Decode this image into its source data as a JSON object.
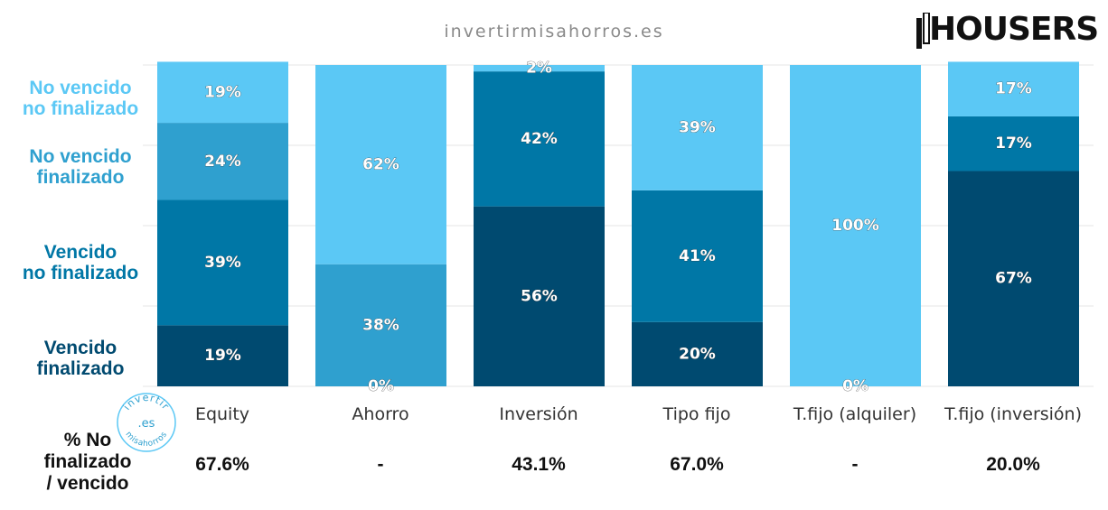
{
  "watermark": "invertirmisahorros.es",
  "brand": "HOUSERS",
  "logo": {
    "top_text": "invertir",
    "middle_text": ".es",
    "bottom_text": "misahorros"
  },
  "legend": [
    {
      "line1": "No vencido",
      "line2": "no finalizado",
      "color": "#5bc8f5"
    },
    {
      "line1": "No vencido",
      "line2": "finalizado",
      "color": "#2fa0cf"
    },
    {
      "line1": "Vencido",
      "line2": "no finalizado",
      "color": "#0077a6"
    },
    {
      "line1": "Vencido",
      "line2": "finalizado",
      "color": "#004a70"
    }
  ],
  "row_title": {
    "line1": "% No",
    "line2": "finalizado",
    "line3": "/ vencido"
  },
  "chart_data": {
    "type": "bar",
    "stacked": true,
    "ylim": [
      0,
      100
    ],
    "grid": true,
    "categories": [
      "Equity",
      "Ahorro",
      "Inversión",
      "Tipo fijo",
      "T.fijo (alquiler)",
      "T.fijo (inversión)"
    ],
    "series": [
      {
        "name": "Vencido finalizado",
        "color": "#004a70",
        "values": [
          19,
          0,
          56,
          20,
          0,
          67
        ],
        "labels": [
          "19%",
          "0%",
          "56%",
          "20%",
          "0%",
          "67%"
        ]
      },
      {
        "name": "Vencido no finalizado",
        "color": "#0077a6",
        "values": [
          39,
          0,
          42,
          41,
          0,
          17
        ],
        "labels": [
          "39%",
          "",
          "42%",
          "41%",
          "",
          "17%"
        ]
      },
      {
        "name": "No vencido finalizado",
        "color": "#2fa0cf",
        "values": [
          24,
          38,
          0,
          0,
          0,
          0
        ],
        "labels": [
          "24%",
          "38%",
          "",
          "",
          "",
          ""
        ]
      },
      {
        "name": "No vencido no finalizado",
        "color": "#5bc8f5",
        "values": [
          19,
          62,
          2,
          39,
          100,
          17
        ],
        "labels": [
          "19%",
          "62%",
          "2%",
          "39%",
          "100%",
          "17%"
        ]
      }
    ],
    "summary_values": [
      "67.6%",
      "-",
      "43.1%",
      "67.0%",
      "-",
      "20.0%"
    ]
  }
}
